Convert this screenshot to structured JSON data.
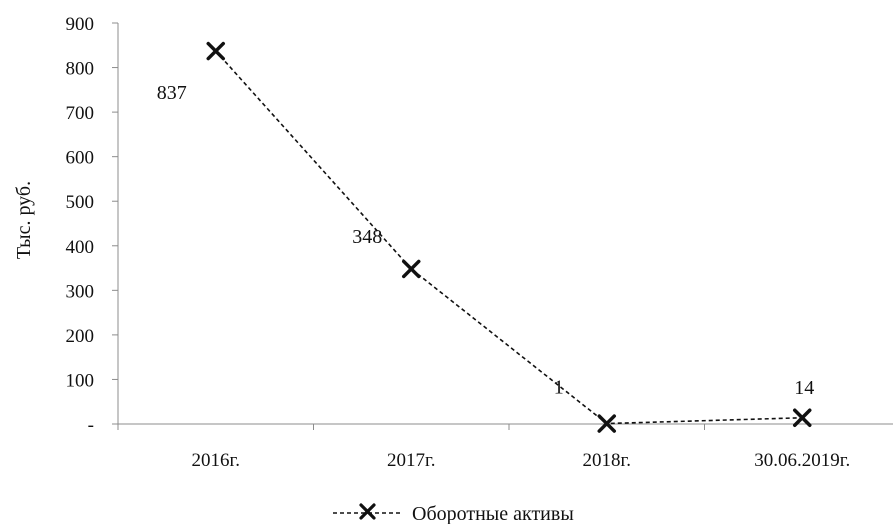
{
  "chart_data": {
    "type": "line",
    "ylabel": "Тыс. руб.",
    "categories": [
      "2016г.",
      "2017г.",
      "2018г.",
      "30.06.2019г."
    ],
    "series": [
      {
        "name": "Оборотные активы",
        "values": [
          837,
          348,
          1,
          14
        ],
        "data_labels": [
          "837",
          "348",
          "1",
          "14"
        ],
        "line_style": "dashed",
        "marker": "x",
        "color": "#111111"
      }
    ],
    "ylim": [
      0,
      900
    ],
    "yticks": [
      0,
      100,
      200,
      300,
      400,
      500,
      600,
      700,
      800,
      900
    ],
    "ytick_labels": [
      "-",
      "100",
      "200",
      "300",
      "400",
      "500",
      "600",
      "700",
      "800",
      "900"
    ],
    "grid": false,
    "legend_position": "bottom"
  }
}
